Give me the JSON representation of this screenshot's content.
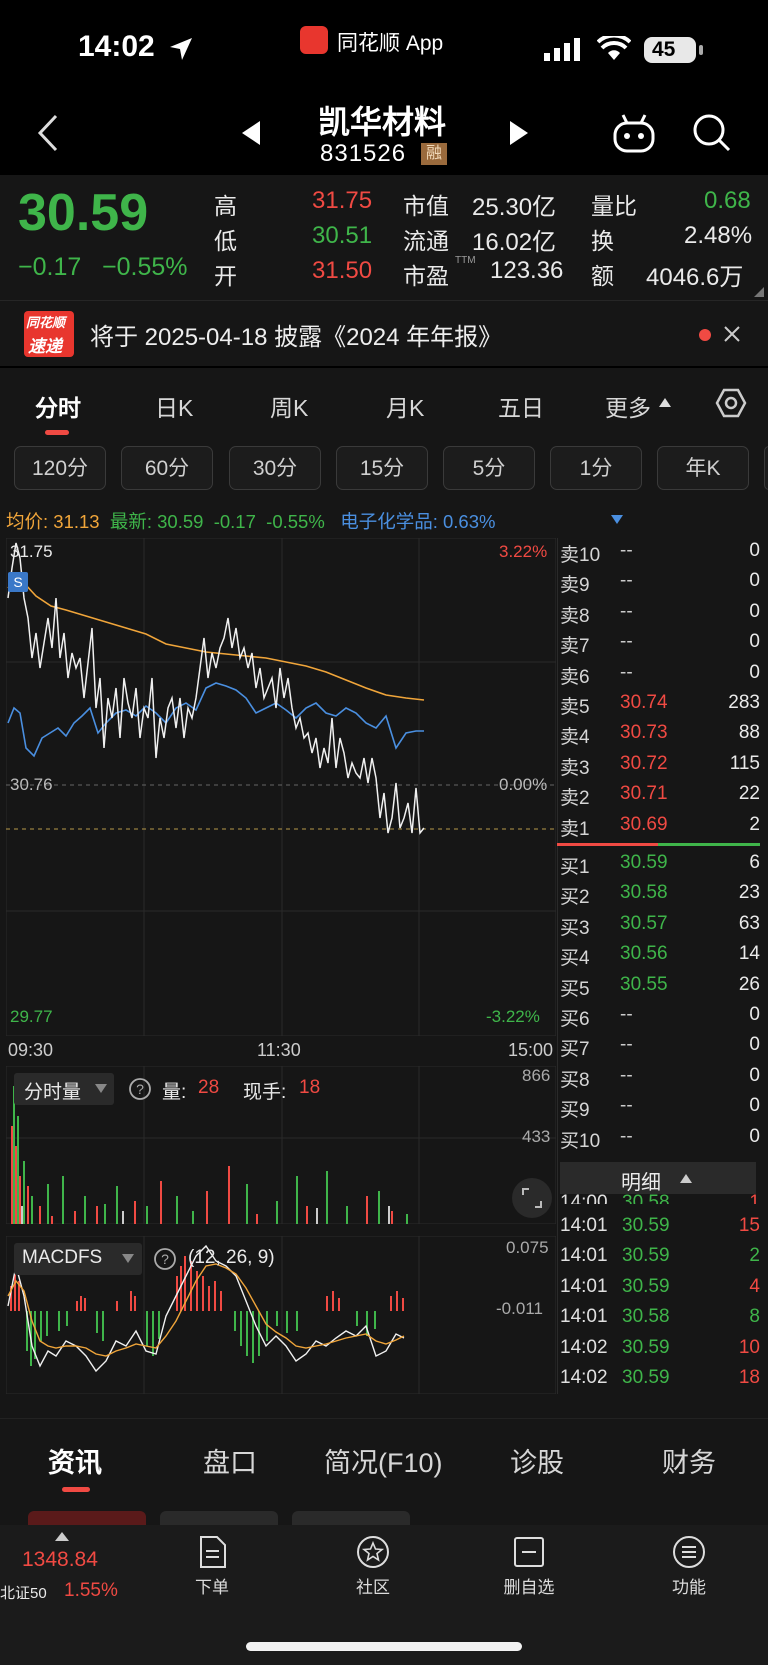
{
  "status_bar": {
    "time": "14:02",
    "app_name": "同花顺 App",
    "battery": "45"
  },
  "nav": {
    "stock_name": "凯华材料",
    "stock_code": "831526",
    "margin_badge": "融"
  },
  "quote": {
    "price": "30.59",
    "change": "−0.17",
    "change_pct": "−0.55%",
    "high_label": "高",
    "high": "31.75",
    "low_label": "低",
    "low": "30.51",
    "open_label": "开",
    "open": "31.50",
    "mktcap_label": "市值",
    "mktcap": "25.30亿",
    "float_label": "流通",
    "float_cap": "16.02亿",
    "pe_label": "市盈",
    "pe_sup": "TTM",
    "pe": "123.36",
    "vol_ratio_label": "量比",
    "vol_ratio": "0.68",
    "turnover_label": "换",
    "turnover": "2.48%",
    "amount_label": "额",
    "amount": "4046.6万"
  },
  "notice": {
    "logo_top": "同花顺",
    "logo_bottom": "速递",
    "text": "将于 2025-04-18 披露《2024 年年报》"
  },
  "tabs": [
    "分时",
    "日K",
    "周K",
    "月K",
    "五日",
    "更多"
  ],
  "chips": [
    "120分",
    "60分",
    "30分",
    "15分",
    "5分",
    "1分",
    "年K"
  ],
  "info_line": {
    "avg_label": "均价:",
    "avg": "31.13",
    "latest_label": "最新:",
    "latest": "30.59",
    "latest_chg": "-0.17",
    "latest_pct": "-0.55%",
    "sector": "电子化学品:",
    "sector_pct": "0.63%"
  },
  "chart_labels": {
    "y_high": "31.75",
    "y_mid": "30.76",
    "y_low": "29.77",
    "pct_high": "3.22%",
    "pct_mid": "0.00%",
    "pct_low": "-3.22%",
    "t_start": "09:30",
    "t_mid": "11:30",
    "t_end": "15:00",
    "s_marker": "S"
  },
  "volume_panel": {
    "selector": "分时量",
    "vol_label": "量:",
    "vol": "28",
    "hand_label": "现手:",
    "hand": "18",
    "axis_top": "866",
    "axis_mid": "433"
  },
  "macd_panel": {
    "selector": "MACDFS",
    "params": "(12, 26, 9)",
    "axis_top": "0.075",
    "axis_mid": "-0.011"
  },
  "order_book": {
    "asks": [
      {
        "label": "卖10",
        "price": "--",
        "vol": "0"
      },
      {
        "label": "卖9",
        "price": "--",
        "vol": "0"
      },
      {
        "label": "卖8",
        "price": "--",
        "vol": "0"
      },
      {
        "label": "卖7",
        "price": "--",
        "vol": "0"
      },
      {
        "label": "卖6",
        "price": "--",
        "vol": "0"
      },
      {
        "label": "卖5",
        "price": "30.74",
        "vol": "283"
      },
      {
        "label": "卖4",
        "price": "30.73",
        "vol": "88"
      },
      {
        "label": "卖3",
        "price": "30.72",
        "vol": "115"
      },
      {
        "label": "卖2",
        "price": "30.71",
        "vol": "22"
      },
      {
        "label": "卖1",
        "price": "30.69",
        "vol": "2"
      }
    ],
    "bids": [
      {
        "label": "买1",
        "price": "30.59",
        "vol": "6"
      },
      {
        "label": "买2",
        "price": "30.58",
        "vol": "23"
      },
      {
        "label": "买3",
        "price": "30.57",
        "vol": "63"
      },
      {
        "label": "买4",
        "price": "30.56",
        "vol": "14"
      },
      {
        "label": "买5",
        "price": "30.55",
        "vol": "26"
      },
      {
        "label": "买6",
        "price": "--",
        "vol": "0"
      },
      {
        "label": "买7",
        "price": "--",
        "vol": "0"
      },
      {
        "label": "买8",
        "price": "--",
        "vol": "0"
      },
      {
        "label": "买9",
        "price": "--",
        "vol": "0"
      },
      {
        "label": "买10",
        "price": "--",
        "vol": "0"
      }
    ],
    "detail_label": "明细",
    "ticks": [
      {
        "time": "14:00",
        "price": "30.58",
        "vol": "1"
      },
      {
        "time": "14:01",
        "price": "30.59",
        "vol": "15"
      },
      {
        "time": "14:01",
        "price": "30.59",
        "vol": "2"
      },
      {
        "time": "14:01",
        "price": "30.59",
        "vol": "4"
      },
      {
        "time": "14:01",
        "price": "30.58",
        "vol": "8"
      },
      {
        "time": "14:02",
        "price": "30.59",
        "vol": "10"
      },
      {
        "time": "14:02",
        "price": "30.59",
        "vol": "18"
      }
    ]
  },
  "bottom_tabs": [
    "资讯",
    "盘口",
    "简况(F10)",
    "诊股",
    "财务"
  ],
  "dock": {
    "index_value": "1348.84",
    "index_name": "北证50",
    "index_pct": "1.55%",
    "items": [
      "下单",
      "社区",
      "删自选",
      "功能"
    ]
  },
  "colors": {
    "up": "#f04a43",
    "down": "#3fb54a",
    "avg_line": "#f0a53a",
    "sector_line": "#4a8fe0"
  }
}
